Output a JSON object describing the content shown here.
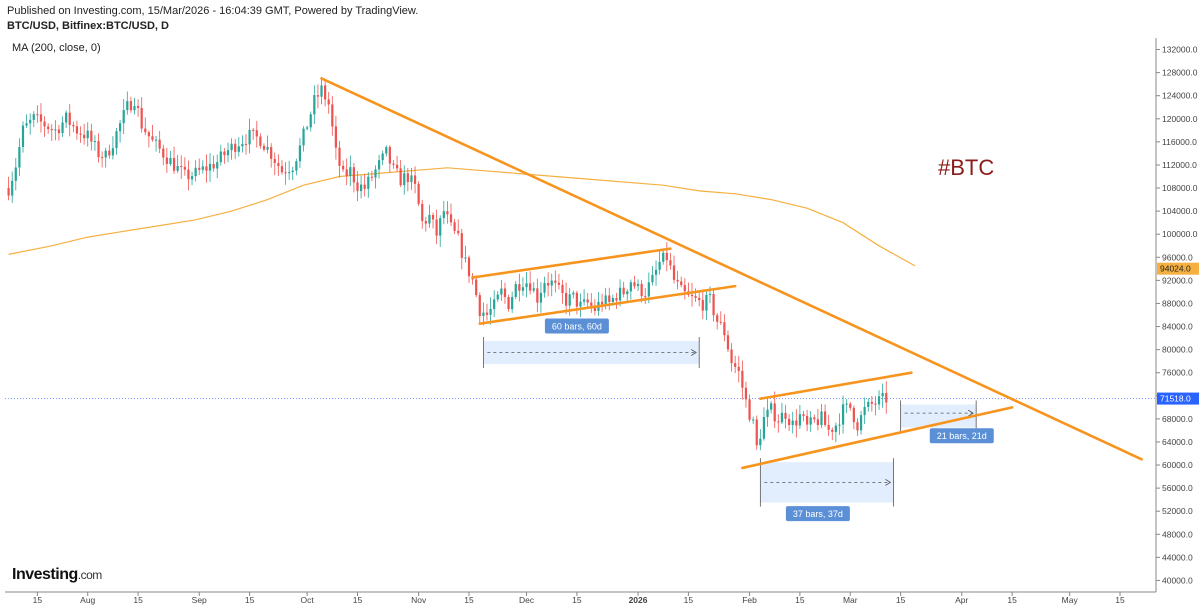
{
  "header": {
    "line1": "Published on Investing.com, 15/Mar/2026 - 16:04:39 GMT, Powered by TradingView.",
    "line2": "BTC/USD, Bitfinex:BTC/USD, D"
  },
  "indicator_label": "MA (200, close, 0)",
  "annotation_tag": "#BTC",
  "logo": {
    "main": "Investing",
    "suffix": ".com"
  },
  "colors": {
    "up": "#26a69a",
    "down": "#ef5350",
    "trendline": "#f7941d",
    "ma": "#f5b041",
    "range_box": "#dbeafe",
    "range_label": "#5b8fd6",
    "current_price": "#2962ff"
  },
  "chart_data": {
    "type": "candlestick",
    "title": "",
    "xlabel": "",
    "ylabel": "",
    "ylim": [
      38000,
      134000
    ],
    "x_ticks": [
      {
        "label": "15",
        "day": -14
      },
      {
        "label": "Aug",
        "day": 0
      },
      {
        "label": "15",
        "day": 14
      },
      {
        "label": "Sep",
        "day": 31
      },
      {
        "label": "15",
        "day": 45
      },
      {
        "label": "Oct",
        "day": 61
      },
      {
        "label": "15",
        "day": 75
      },
      {
        "label": "Nov",
        "day": 92
      },
      {
        "label": "15",
        "day": 106
      },
      {
        "label": "Dec",
        "day": 122
      },
      {
        "label": "15",
        "day": 136
      },
      {
        "label": "2026",
        "day": 153,
        "bold": true
      },
      {
        "label": "15",
        "day": 167
      },
      {
        "label": "Feb",
        "day": 184
      },
      {
        "label": "15",
        "day": 198
      },
      {
        "label": "Mar",
        "day": 212
      },
      {
        "label": "15",
        "day": 226
      },
      {
        "label": "Apr",
        "day": 243
      },
      {
        "label": "15",
        "day": 257
      },
      {
        "label": "May",
        "day": 273
      },
      {
        "label": "15",
        "day": 287
      }
    ],
    "y_ticks": [
      132000,
      128000,
      124000,
      120000,
      116000,
      112000,
      108000,
      104000,
      100000,
      96000,
      92000,
      88000,
      84000,
      80000,
      76000,
      72000,
      68000,
      64000,
      60000,
      56000,
      52000,
      48000,
      44000,
      40000
    ],
    "y_tick_labels": [
      "132000.0",
      "128000.0",
      "124000.0",
      "120000.0",
      "116000.0",
      "112000.0",
      "108000.0",
      "104000.0",
      "100000.0",
      "96000.0",
      "92000.0",
      "88000.0",
      "84000.0",
      "80000.0",
      "76000.0",
      "72000.0",
      "68000.0",
      "64000.0",
      "60000.0",
      "56000.0",
      "52000.0",
      "48000.0",
      "44000.0",
      "40000.0"
    ],
    "price_path": [
      [
        -22,
        108000
      ],
      [
        -20,
        112000
      ],
      [
        -18,
        118000
      ],
      [
        -15,
        120000
      ],
      [
        -12,
        119000
      ],
      [
        -9,
        118000
      ],
      [
        -6,
        120000
      ],
      [
        -3,
        118000
      ],
      [
        0,
        117000
      ],
      [
        3,
        114000
      ],
      [
        5,
        113500
      ],
      [
        7,
        116000
      ],
      [
        9,
        119000
      ],
      [
        11,
        122000
      ],
      [
        13,
        123500
      ],
      [
        15,
        119000
      ],
      [
        18,
        116000
      ],
      [
        21,
        114000
      ],
      [
        24,
        112000
      ],
      [
        27,
        110000
      ],
      [
        30,
        110500
      ],
      [
        33,
        111500
      ],
      [
        36,
        112500
      ],
      [
        39,
        114500
      ],
      [
        42,
        116000
      ],
      [
        45,
        117000
      ],
      [
        48,
        116500
      ],
      [
        51,
        114000
      ],
      [
        54,
        111000
      ],
      [
        57,
        112000
      ],
      [
        59,
        115000
      ],
      [
        61,
        119000
      ],
      [
        63,
        123000
      ],
      [
        65,
        125000
      ],
      [
        67,
        122500
      ],
      [
        69,
        114000
      ],
      [
        71,
        110000
      ],
      [
        73,
        111000
      ],
      [
        75,
        108500
      ],
      [
        77,
        108000
      ],
      [
        79,
        110000
      ],
      [
        81,
        112000
      ],
      [
        83,
        114000
      ],
      [
        85,
        111000
      ],
      [
        87,
        109500
      ],
      [
        89,
        110000
      ],
      [
        91,
        108000
      ],
      [
        93,
        102000
      ],
      [
        95,
        103000
      ],
      [
        97,
        100000
      ],
      [
        99,
        104000
      ],
      [
        101,
        101000
      ],
      [
        103,
        99000
      ],
      [
        105,
        95000
      ],
      [
        107,
        92000
      ],
      [
        109,
        87000
      ],
      [
        111,
        86000
      ],
      [
        113,
        87500
      ],
      [
        115,
        90000
      ],
      [
        117,
        88000
      ],
      [
        119,
        91000
      ],
      [
        121,
        92000
      ],
      [
        123,
        91500
      ],
      [
        125,
        89000
      ],
      [
        127,
        92000
      ],
      [
        129,
        91500
      ],
      [
        131,
        90000
      ],
      [
        133,
        88500
      ],
      [
        135,
        89000
      ],
      [
        137,
        87500
      ],
      [
        139,
        88000
      ],
      [
        141,
        87000
      ],
      [
        143,
        88500
      ],
      [
        145,
        88000
      ],
      [
        147,
        89500
      ],
      [
        149,
        90000
      ],
      [
        151,
        92000
      ],
      [
        153,
        90500
      ],
      [
        155,
        90000
      ],
      [
        157,
        92000
      ],
      [
        159,
        95000
      ],
      [
        161,
        96000
      ],
      [
        163,
        92000
      ],
      [
        165,
        90000
      ],
      [
        167,
        89000
      ],
      [
        169,
        88500
      ],
      [
        171,
        88000
      ],
      [
        173,
        88500
      ],
      [
        175,
        85000
      ],
      [
        177,
        83000
      ],
      [
        179,
        78000
      ],
      [
        181,
        76000
      ],
      [
        183,
        71000
      ],
      [
        185,
        67000
      ],
      [
        186,
        63000
      ],
      [
        188,
        68000
      ],
      [
        190,
        69500
      ],
      [
        192,
        68000
      ],
      [
        194,
        69000
      ],
      [
        196,
        67000
      ],
      [
        198,
        68500
      ],
      [
        200,
        66500
      ],
      [
        202,
        67500
      ],
      [
        204,
        68000
      ],
      [
        206,
        66000
      ],
      [
        208,
        67000
      ],
      [
        210,
        69500
      ],
      [
        212,
        70000
      ],
      [
        214,
        67000
      ],
      [
        216,
        69500
      ],
      [
        218,
        70500
      ],
      [
        220,
        71000
      ],
      [
        222,
        71518
      ]
    ],
    "ma200": [
      [
        -22,
        96500
      ],
      [
        -10,
        98000
      ],
      [
        0,
        99500
      ],
      [
        10,
        100500
      ],
      [
        20,
        101500
      ],
      [
        30,
        102500
      ],
      [
        40,
        104000
      ],
      [
        50,
        106000
      ],
      [
        60,
        108500
      ],
      [
        70,
        110000
      ],
      [
        80,
        110500
      ],
      [
        90,
        111000
      ],
      [
        100,
        111500
      ],
      [
        110,
        111000
      ],
      [
        120,
        110500
      ],
      [
        130,
        110000
      ],
      [
        140,
        109500
      ],
      [
        150,
        109000
      ],
      [
        160,
        108500
      ],
      [
        170,
        107500
      ],
      [
        180,
        107000
      ],
      [
        190,
        106000
      ],
      [
        200,
        104500
      ],
      [
        210,
        102000
      ],
      [
        220,
        98000
      ],
      [
        230,
        94500
      ]
    ],
    "trendlines": [
      {
        "from": [
          65,
          127000
        ],
        "to": [
          293,
          61000
        ]
      },
      {
        "from": [
          107,
          92500
        ],
        "to": [
          162,
          97500
        ]
      },
      {
        "from": [
          109,
          84500
        ],
        "to": [
          180,
          91000
        ]
      },
      {
        "from": [
          187,
          71500
        ],
        "to": [
          229,
          76000
        ]
      },
      {
        "from": [
          182,
          59500
        ],
        "to": [
          257,
          70000
        ]
      }
    ],
    "range_boxes": [
      {
        "x0": 110,
        "x1": 170,
        "y_top": 81500,
        "y_bottom": 77500,
        "arrow_y": 79500,
        "label": "60 bars, 60d",
        "label_day": 136,
        "label_y": 84000
      },
      {
        "x0": 187,
        "x1": 224,
        "y_top": 60500,
        "y_bottom": 53500,
        "arrow_y": 57000,
        "label": "37 bars, 37d",
        "label_day": 203,
        "label_y": 51500
      },
      {
        "x0": 226,
        "x1": 247,
        "y_top": 70500,
        "y_bottom": 66500,
        "arrow_y": 69000,
        "label": "21 bars, 21d",
        "label_day": 243,
        "label_y": 65000
      }
    ],
    "price_labels": [
      {
        "value": 94024,
        "text": "94024.0",
        "kind": "ma"
      },
      {
        "value": 71518,
        "text": "71518.0",
        "kind": "current"
      }
    ]
  }
}
